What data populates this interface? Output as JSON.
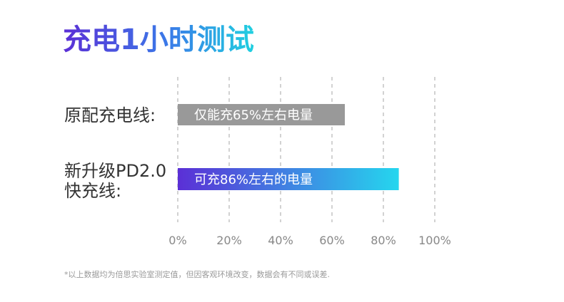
{
  "title": "充电1小时测试",
  "footnote": "*以上数据均为倍思实验室测定值，但因客观环境改变，数据会有不同或误差.",
  "chart_data": {
    "type": "bar",
    "orientation": "horizontal",
    "title": "充电1小时测试",
    "xlim": [
      0,
      100
    ],
    "x_ticks": [
      "0%",
      "20%",
      "40%",
      "60%",
      "80%",
      "100%"
    ],
    "grid": true,
    "categories": [
      {
        "label_lines": [
          "原配充电线:"
        ],
        "value": 65,
        "bar_label": "仅能充65%左右电量",
        "color": "#999999"
      },
      {
        "label_lines": [
          "新升级PD2.0",
          "快充线:"
        ],
        "value": 86,
        "bar_label": "可充86%左右的电量",
        "gradient": [
          "#5b2fd6",
          "#25d6ee"
        ]
      }
    ]
  }
}
